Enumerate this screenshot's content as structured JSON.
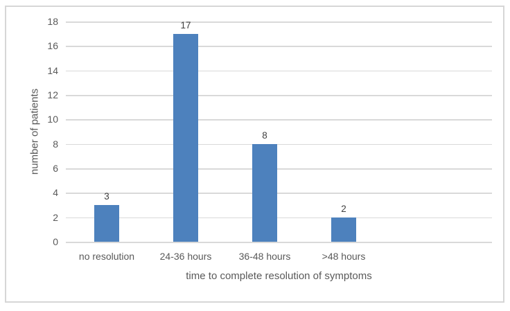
{
  "chart_data": {
    "type": "bar",
    "categories": [
      "no resolution",
      "24-36 hours",
      "36-48 hours",
      ">48 hours"
    ],
    "values": [
      3,
      17,
      8,
      2
    ],
    "data_labels": [
      "3",
      "17",
      "8",
      "2"
    ],
    "title": "",
    "xlabel": "time to complete resolution of symptoms",
    "ylabel": "number of patients",
    "ylim": [
      0,
      18
    ],
    "ytick_step": 2,
    "ytick_labels": [
      "0",
      "2",
      "4",
      "6",
      "8",
      "10",
      "12",
      "14",
      "16",
      "18"
    ],
    "grid": "horizontal gridlines on",
    "legend": "none",
    "colors": {
      "bar": "#4d81bd",
      "gridline": "#d9d9d9",
      "axis_text": "#595959",
      "data_label_text": "#404040",
      "frame_border": "#d6d6d6",
      "background": "#ffffff"
    }
  }
}
